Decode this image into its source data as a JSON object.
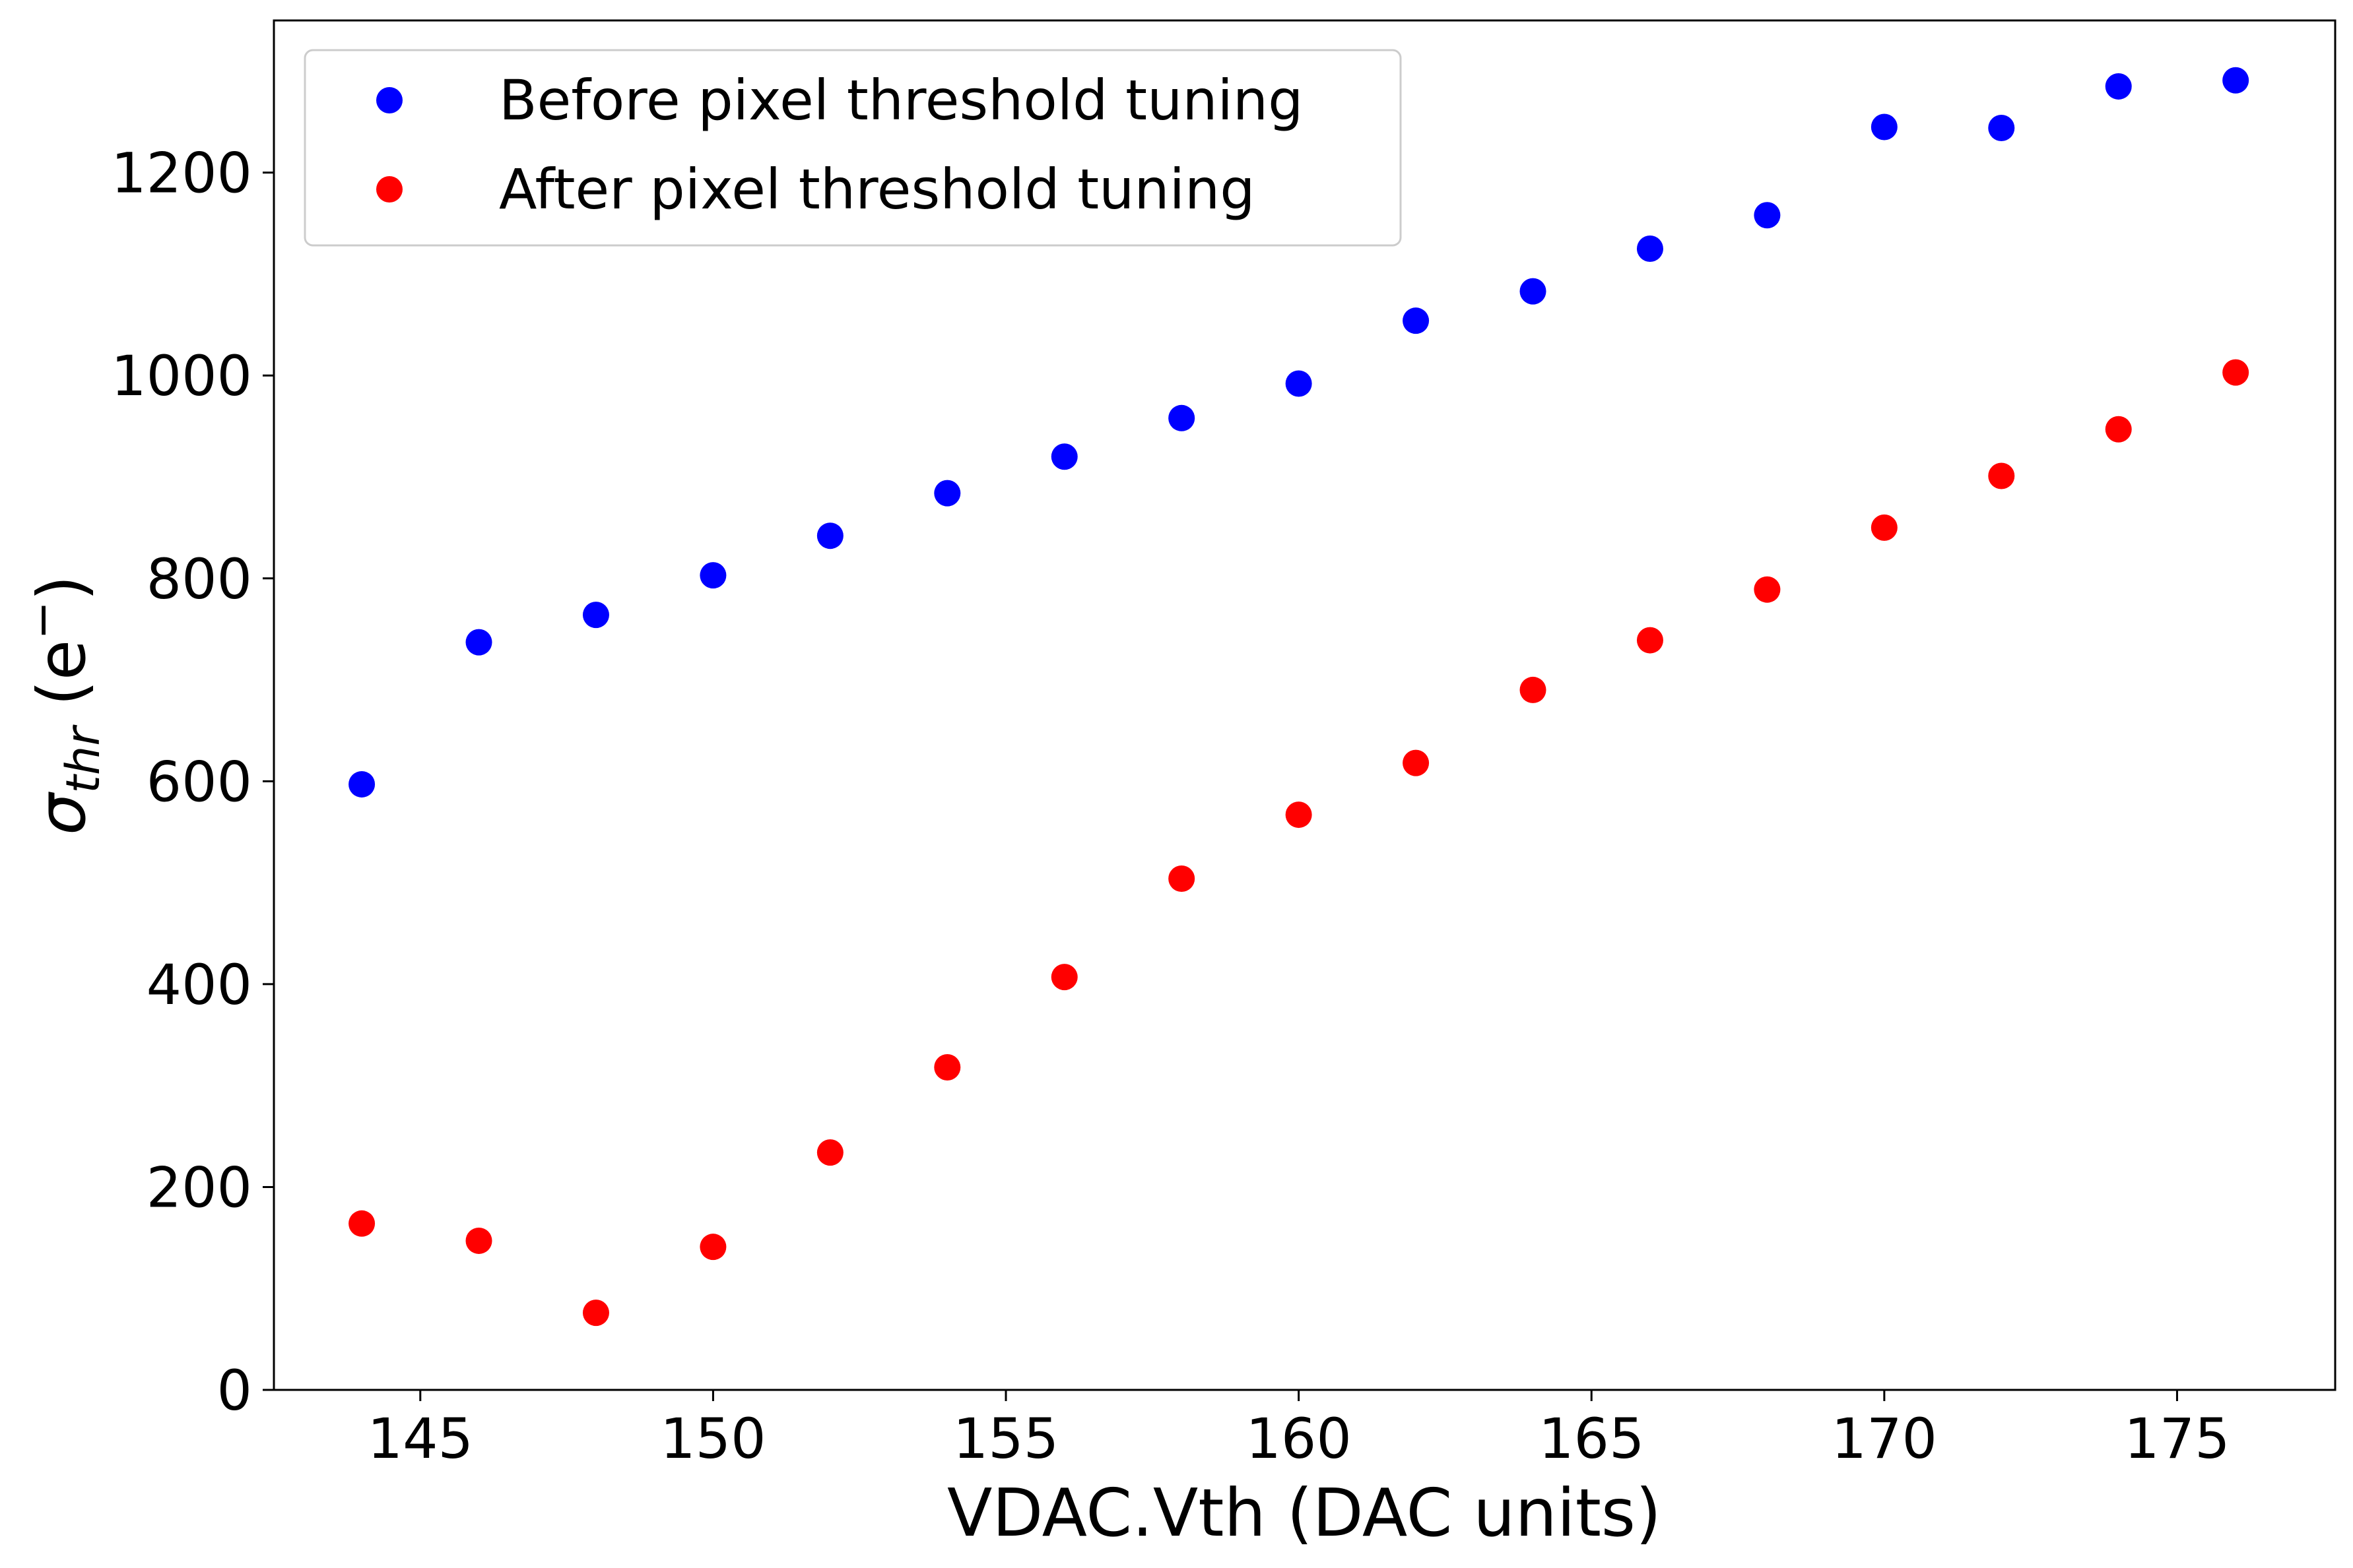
{
  "chart_data": {
    "type": "scatter",
    "title": "",
    "xlabel": "VDAC.Vth (DAC units)",
    "ylabel": {
      "symbol": "σ",
      "subscript": "thr",
      "unit_open": " (e",
      "unit_sup": "−",
      "unit_close": ")"
    },
    "xlim": [
      142.5,
      177.7
    ],
    "ylim": [
      0,
      1350
    ],
    "xticks": [
      "145",
      "150",
      "155",
      "160",
      "165",
      "170",
      "175"
    ],
    "xtick_values": [
      145,
      150,
      155,
      160,
      165,
      170,
      175
    ],
    "yticks": [
      "0",
      "200",
      "400",
      "600",
      "800",
      "1000",
      "1200"
    ],
    "ytick_values": [
      0,
      200,
      400,
      600,
      800,
      1000,
      1200
    ],
    "grid": false,
    "legend_position": "upper-left",
    "series": [
      {
        "name": "Before pixel threshold tuning",
        "color": "#0000ff",
        "x": [
          144,
          146,
          148,
          150,
          152,
          154,
          156,
          158,
          160,
          162,
          164,
          166,
          168,
          170,
          172,
          174,
          176
        ],
        "y": [
          597,
          737,
          764,
          803,
          842,
          884,
          920,
          958,
          992,
          1054,
          1083,
          1125,
          1158,
          1245,
          1244,
          1285,
          1291
        ]
      },
      {
        "name": "After pixel threshold tuning",
        "color": "#ff0000",
        "x": [
          144,
          146,
          148,
          150,
          152,
          154,
          156,
          158,
          160,
          162,
          164,
          166,
          168,
          170,
          172,
          174,
          176
        ],
        "y": [
          164,
          147,
          76,
          141,
          234,
          318,
          407,
          504,
          567,
          618,
          690,
          739,
          789,
          850,
          901,
          947,
          1003
        ]
      }
    ]
  }
}
